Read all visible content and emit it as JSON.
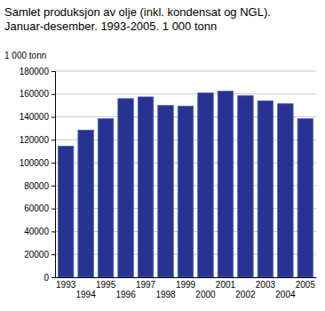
{
  "chart_data": {
    "type": "bar",
    "title": "Samlet produksjon av olje (inkl. kondensat og NGL).",
    "subtitle": "Januar-desember. 1993-2005. 1 000 tonn",
    "y_label": "1 000 tonn",
    "categories": [
      "1993",
      "1994",
      "1995",
      "1996",
      "1997",
      "1998",
      "1999",
      "2000",
      "2001",
      "2002",
      "2003",
      "2004",
      "2005"
    ],
    "values": [
      114500,
      128500,
      138500,
      156000,
      157500,
      150000,
      149500,
      161000,
      162500,
      158500,
      154000,
      151500,
      138500
    ],
    "color": "#27348f",
    "ylim": [
      0,
      180000
    ],
    "yticks": [
      0,
      20000,
      40000,
      60000,
      80000,
      100000,
      120000,
      140000,
      160000,
      180000
    ],
    "grid": true
  }
}
